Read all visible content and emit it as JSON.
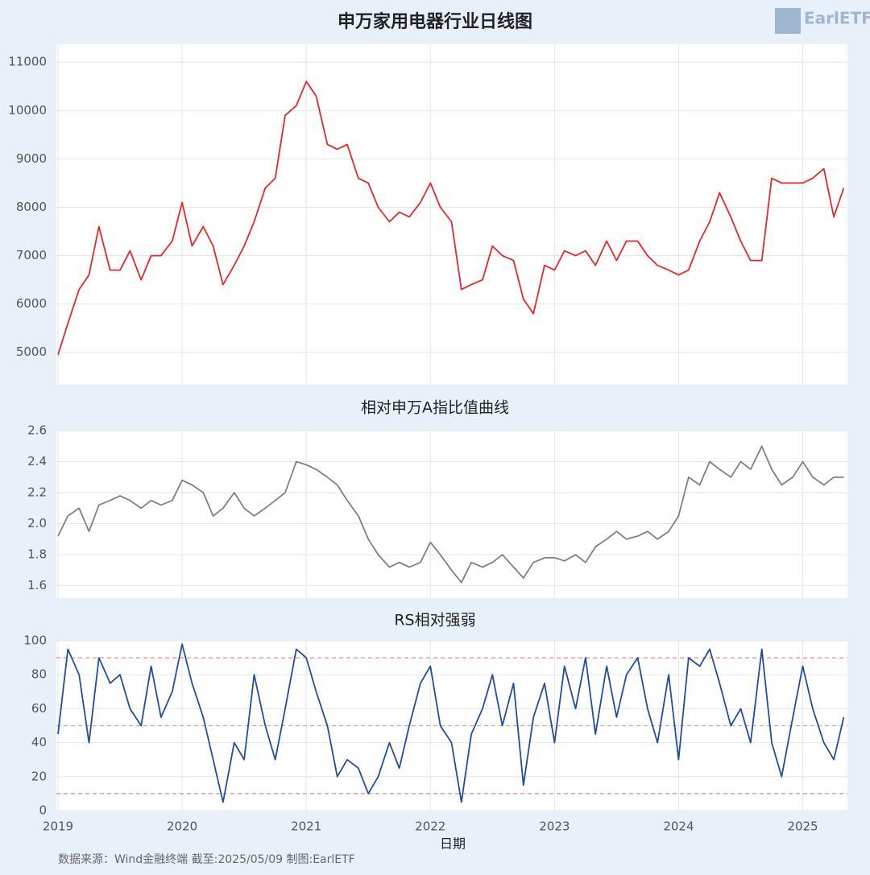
{
  "logo": "EarlETF",
  "source": "数据来源：Wind金融终端 截至:2025/05/09 制图:EarlETF",
  "chart_data": [
    {
      "type": "line",
      "title": "申万家用电器行业日线图",
      "color": "#e8262a",
      "x": [
        2019.0,
        2019.08,
        2019.17,
        2019.25,
        2019.33,
        2019.42,
        2019.5,
        2019.58,
        2019.67,
        2019.75,
        2019.83,
        2019.92,
        2020.0,
        2020.08,
        2020.17,
        2020.25,
        2020.33,
        2020.42,
        2020.5,
        2020.58,
        2020.67,
        2020.75,
        2020.83,
        2020.92,
        2021.0,
        2021.08,
        2021.17,
        2021.25,
        2021.33,
        2021.42,
        2021.5,
        2021.58,
        2021.67,
        2021.75,
        2021.83,
        2021.92,
        2022.0,
        2022.08,
        2022.17,
        2022.25,
        2022.33,
        2022.42,
        2022.5,
        2022.58,
        2022.67,
        2022.75,
        2022.83,
        2022.92,
        2023.0,
        2023.08,
        2023.17,
        2023.25,
        2023.33,
        2023.42,
        2023.5,
        2023.58,
        2023.67,
        2023.75,
        2023.83,
        2023.92,
        2024.0,
        2024.08,
        2024.17,
        2024.25,
        2024.33,
        2024.42,
        2024.5,
        2024.58,
        2024.67,
        2024.75,
        2024.83,
        2024.92,
        2025.0,
        2025.08,
        2025.17,
        2025.25,
        2025.33
      ],
      "values": [
        4950,
        5600,
        6300,
        6600,
        7600,
        6700,
        6700,
        7100,
        6500,
        7000,
        7000,
        7300,
        8100,
        7200,
        7600,
        7200,
        6400,
        6800,
        7200,
        7700,
        8400,
        8600,
        9900,
        10100,
        10600,
        10300,
        9300,
        9200,
        9300,
        8600,
        8500,
        8000,
        7700,
        7900,
        7800,
        8100,
        8500,
        8000,
        7700,
        6300,
        6400,
        6500,
        7200,
        7000,
        6900,
        6100,
        5800,
        6800,
        6700,
        7100,
        7000,
        7100,
        6800,
        7300,
        6900,
        7300,
        7300,
        7000,
        6800,
        6700,
        6600,
        6700,
        7300,
        7700,
        8300,
        7800,
        7300,
        6900,
        6900,
        8600,
        8500,
        8500,
        8500,
        8600,
        8800,
        7800,
        8400
      ],
      "xlim": [
        2019,
        2025.36
      ],
      "xticks": [
        2019,
        2020,
        2021,
        2022,
        2023,
        2024,
        2025
      ],
      "show_xtick_labels": false,
      "ylim": [
        4330,
        11370
      ],
      "yticks": [
        5000,
        6000,
        7000,
        8000,
        9000,
        10000,
        11000
      ],
      "grid": true
    },
    {
      "type": "line",
      "title": "相对申万A指比值曲线",
      "color": "#808080",
      "x": [
        2019.0,
        2019.08,
        2019.17,
        2019.25,
        2019.33,
        2019.42,
        2019.5,
        2019.58,
        2019.67,
        2019.75,
        2019.83,
        2019.92,
        2020.0,
        2020.08,
        2020.17,
        2020.25,
        2020.33,
        2020.42,
        2020.5,
        2020.58,
        2020.67,
        2020.75,
        2020.83,
        2020.92,
        2021.0,
        2021.08,
        2021.17,
        2021.25,
        2021.33,
        2021.42,
        2021.5,
        2021.58,
        2021.67,
        2021.75,
        2021.83,
        2021.92,
        2022.0,
        2022.08,
        2022.17,
        2022.25,
        2022.33,
        2022.42,
        2022.5,
        2022.58,
        2022.67,
        2022.75,
        2022.83,
        2022.92,
        2023.0,
        2023.08,
        2023.17,
        2023.25,
        2023.33,
        2023.42,
        2023.5,
        2023.58,
        2023.67,
        2023.75,
        2023.83,
        2023.92,
        2024.0,
        2024.08,
        2024.17,
        2024.25,
        2024.33,
        2024.42,
        2024.5,
        2024.58,
        2024.67,
        2024.75,
        2024.83,
        2024.92,
        2025.0,
        2025.08,
        2025.17,
        2025.25,
        2025.33
      ],
      "values": [
        1.92,
        2.05,
        2.1,
        1.95,
        2.12,
        2.15,
        2.18,
        2.15,
        2.1,
        2.15,
        2.12,
        2.15,
        2.28,
        2.25,
        2.2,
        2.05,
        2.1,
        2.2,
        2.1,
        2.05,
        2.1,
        2.15,
        2.2,
        2.4,
        2.38,
        2.35,
        2.3,
        2.25,
        2.15,
        2.05,
        1.9,
        1.8,
        1.72,
        1.75,
        1.72,
        1.75,
        1.88,
        1.8,
        1.7,
        1.62,
        1.75,
        1.72,
        1.75,
        1.8,
        1.72,
        1.65,
        1.75,
        1.78,
        1.78,
        1.76,
        1.8,
        1.75,
        1.85,
        1.9,
        1.95,
        1.9,
        1.92,
        1.95,
        1.9,
        1.95,
        2.05,
        2.3,
        2.25,
        2.4,
        2.35,
        2.3,
        2.4,
        2.35,
        2.5,
        2.35,
        2.25,
        2.3,
        2.4,
        2.3,
        2.25,
        2.3,
        2.3
      ],
      "xlim": [
        2019,
        2025.36
      ],
      "xticks": [
        2019,
        2020,
        2021,
        2022,
        2023,
        2024,
        2025
      ],
      "show_xtick_labels": false,
      "ylim": [
        1.52,
        2.6
      ],
      "yticks": [
        1.6,
        1.8,
        {
          "value": 2,
          "label": "2.0"
        },
        2.2,
        2.4,
        2.6
      ],
      "grid": true
    },
    {
      "type": "line",
      "title": "RS相对强弱",
      "color": "#1f4e9e",
      "xlabel": "日期",
      "x": [
        2019.0,
        2019.08,
        2019.17,
        2019.25,
        2019.33,
        2019.42,
        2019.5,
        2019.58,
        2019.67,
        2019.75,
        2019.83,
        2019.92,
        2020.0,
        2020.08,
        2020.17,
        2020.25,
        2020.33,
        2020.42,
        2020.5,
        2020.58,
        2020.67,
        2020.75,
        2020.83,
        2020.92,
        2021.0,
        2021.08,
        2021.17,
        2021.25,
        2021.33,
        2021.42,
        2021.5,
        2021.58,
        2021.67,
        2021.75,
        2021.83,
        2021.92,
        2022.0,
        2022.08,
        2022.17,
        2022.25,
        2022.33,
        2022.42,
        2022.5,
        2022.58,
        2022.67,
        2022.75,
        2022.83,
        2022.92,
        2023.0,
        2023.08,
        2023.17,
        2023.25,
        2023.33,
        2023.42,
        2023.5,
        2023.58,
        2023.67,
        2023.75,
        2023.83,
        2023.92,
        2024.0,
        2024.08,
        2024.17,
        2024.25,
        2024.33,
        2024.42,
        2024.5,
        2024.58,
        2024.67,
        2024.75,
        2024.83,
        2024.92,
        2025.0,
        2025.08,
        2025.17,
        2025.25,
        2025.33
      ],
      "values": [
        45,
        95,
        80,
        40,
        90,
        75,
        80,
        60,
        50,
        85,
        55,
        70,
        98,
        75,
        55,
        30,
        5,
        40,
        30,
        80,
        50,
        30,
        60,
        95,
        90,
        70,
        50,
        20,
        30,
        25,
        10,
        20,
        40,
        25,
        50,
        75,
        85,
        50,
        40,
        5,
        45,
        60,
        80,
        50,
        75,
        15,
        55,
        75,
        40,
        85,
        60,
        90,
        45,
        85,
        55,
        80,
        90,
        60,
        40,
        80,
        30,
        90,
        85,
        95,
        75,
        50,
        60,
        40,
        95,
        40,
        20,
        55,
        85,
        60,
        40,
        30,
        55
      ],
      "xlim": [
        2019,
        2025.36
      ],
      "xticks": [
        2019,
        2020,
        2021,
        2022,
        2023,
        2024,
        2025
      ],
      "show_xtick_labels": true,
      "ylim": [
        0,
        100
      ],
      "yticks": [
        0,
        20,
        40,
        60,
        80,
        100
      ],
      "grid": true,
      "reference_lines": [
        {
          "y": 90,
          "color": "#f08080"
        },
        {
          "y": 50,
          "color": "#b0b0b0"
        },
        {
          "y": 10,
          "color": "#f08080"
        }
      ]
    }
  ]
}
